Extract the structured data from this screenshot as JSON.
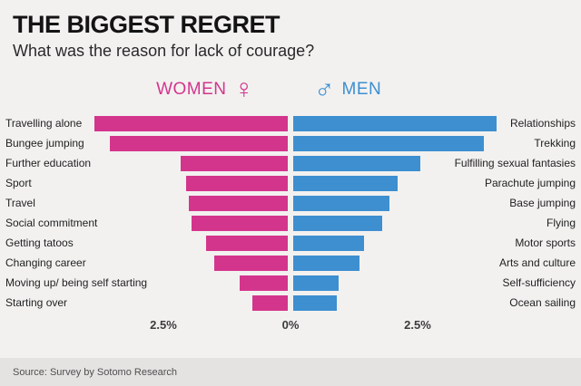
{
  "page": {
    "source": "Source: Survey by Sotomo Research"
  },
  "legend": {
    "women_label": "WOMEN",
    "women_symbol": "♀",
    "men_label": "MEN",
    "men_symbol": "♂"
  },
  "axis": {
    "left_tick": "2.5%",
    "center_tick": "0%",
    "right_tick": "2.5%"
  },
  "colors": {
    "women": "#d4358c",
    "men": "#3d8fd0",
    "background": "#f2f1f0",
    "source_strip": "#e4e3e2"
  },
  "chart_data": {
    "type": "bar",
    "orientation": "diverging-horizontal",
    "title": "THE BIGGEST REGRET",
    "subtitle": "What was the reason for lack of courage?",
    "unit": "%",
    "xlim": [
      -4.5,
      4.5
    ],
    "tick_values": [
      -2.5,
      0,
      2.5
    ],
    "tick_labels": [
      "2.5%",
      "0%",
      "2.5%"
    ],
    "legend_position": "top",
    "grid": false,
    "series": [
      {
        "name": "WOMEN",
        "color": "#d4358c",
        "categories": [
          "Travelling alone",
          "Bungee jumping",
          "Further education",
          "Sport",
          "Travel",
          "Social commitment",
          "Getting tatoos",
          "Changing career",
          "Moving up/ being self starting",
          "Starting over"
        ],
        "values": [
          3.8,
          3.5,
          2.1,
          2.0,
          1.95,
          1.9,
          1.6,
          1.45,
          0.95,
          0.7
        ]
      },
      {
        "name": "MEN",
        "color": "#3d8fd0",
        "categories": [
          "Relationships",
          "Trekking",
          "Fulfilling sexual fantasies",
          "Parachute jumping",
          "Base jumping",
          "Flying",
          "Motor sports",
          "Arts and culture",
          "Self-sufficiency",
          "Ocean sailing"
        ],
        "values": [
          4.0,
          3.75,
          2.5,
          2.05,
          1.9,
          1.75,
          1.4,
          1.3,
          0.9,
          0.85
        ]
      }
    ]
  }
}
